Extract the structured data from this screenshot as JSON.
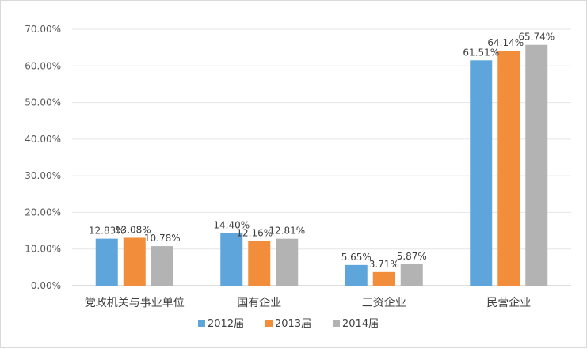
{
  "chart_data": {
    "type": "bar",
    "title": "",
    "xlabel": "",
    "ylabel": "",
    "categories": [
      "党政机关与事业单位",
      "国有企业",
      "三资企业",
      "民营企业"
    ],
    "series": [
      {
        "name": "2012届",
        "color": "#5DA5DA",
        "values": [
          12.83,
          14.4,
          5.65,
          61.51
        ],
        "labels": [
          "12.83%",
          "14.40%",
          "5.65%",
          "61.51%"
        ]
      },
      {
        "name": "2013届",
        "color": "#F28E3B",
        "values": [
          13.08,
          12.16,
          3.71,
          64.14
        ],
        "labels": [
          "13.08%",
          "12.16%",
          "3.71%",
          "64.14%"
        ]
      },
      {
        "name": "2014届",
        "color": "#B3B3B3",
        "values": [
          10.78,
          12.81,
          5.87,
          65.74
        ],
        "labels": [
          "10.78%",
          "12.81%",
          "5.87%",
          "65.74%"
        ]
      }
    ],
    "ylim": [
      0,
      70
    ],
    "yticks": [
      0,
      10,
      20,
      30,
      40,
      50,
      60,
      70
    ],
    "ytick_labels": [
      "0.00%",
      "10.00%",
      "20.00%",
      "30.00%",
      "40.00%",
      "50.00%",
      "60.00%",
      "70.00%"
    ],
    "grid": true,
    "legend_position": "bottom"
  }
}
